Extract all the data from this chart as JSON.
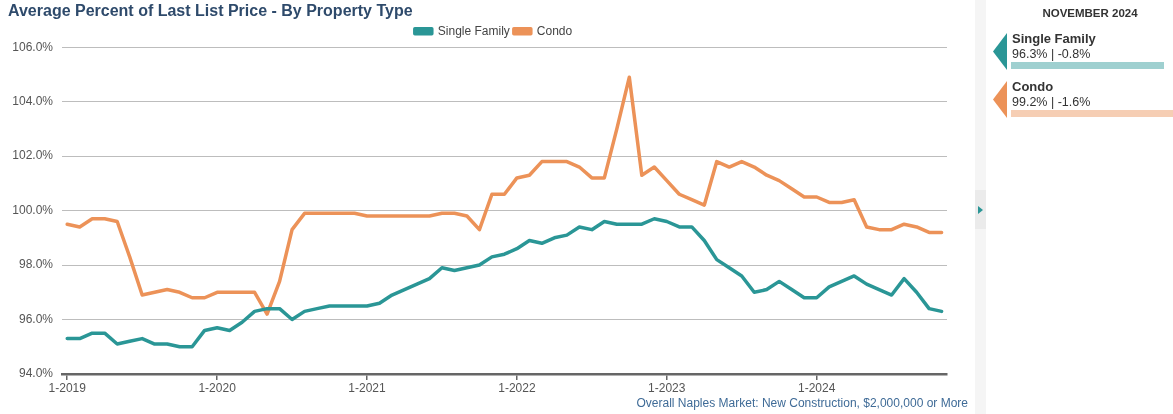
{
  "chart_data": [
    {
      "type": "line",
      "title": "Average Percent of Last List Price - By Property Type",
      "x": [
        "2019-01",
        "2019-02",
        "2019-03",
        "2019-04",
        "2019-05",
        "2019-06",
        "2019-07",
        "2019-08",
        "2019-09",
        "2019-10",
        "2019-11",
        "2019-12",
        "2020-01",
        "2020-02",
        "2020-03",
        "2020-04",
        "2020-05",
        "2020-06",
        "2020-07",
        "2020-08",
        "2020-09",
        "2020-10",
        "2020-11",
        "2020-12",
        "2021-01",
        "2021-02",
        "2021-03",
        "2021-04",
        "2021-05",
        "2021-06",
        "2021-07",
        "2021-08",
        "2021-09",
        "2021-10",
        "2021-11",
        "2021-12",
        "2022-01",
        "2022-02",
        "2022-03",
        "2022-04",
        "2022-05",
        "2022-06",
        "2022-07",
        "2022-08",
        "2022-09",
        "2022-10",
        "2022-11",
        "2022-12",
        "2023-01",
        "2023-02",
        "2023-03",
        "2023-04",
        "2023-05",
        "2023-06",
        "2023-07",
        "2023-08",
        "2023-09",
        "2023-10",
        "2023-11",
        "2023-12",
        "2024-01",
        "2024-02",
        "2024-03",
        "2024-04",
        "2024-05",
        "2024-06",
        "2024-07",
        "2024-08",
        "2024-09",
        "2024-10",
        "2024-11"
      ],
      "series": [
        {
          "name": "Single Family",
          "color": "#2a9696",
          "values": [
            95.3,
            95.3,
            95.5,
            95.5,
            95.1,
            95.2,
            95.3,
            95.1,
            95.1,
            95.0,
            95.0,
            95.6,
            95.7,
            95.6,
            95.9,
            96.3,
            96.4,
            96.4,
            96.0,
            96.3,
            96.4,
            96.5,
            96.5,
            96.5,
            96.5,
            96.6,
            96.9,
            97.1,
            97.3,
            97.5,
            97.9,
            97.8,
            97.9,
            98.0,
            98.3,
            98.4,
            98.6,
            98.9,
            98.8,
            99.0,
            99.1,
            99.4,
            99.3,
            99.6,
            99.5,
            99.5,
            99.5,
            99.7,
            99.6,
            99.4,
            99.4,
            98.9,
            98.2,
            97.9,
            97.6,
            97.0,
            97.1,
            97.4,
            97.1,
            96.8,
            96.8,
            97.2,
            97.4,
            97.6,
            97.3,
            97.1,
            96.9,
            97.5,
            97.0,
            96.4,
            96.3
          ]
        },
        {
          "name": "Condo",
          "color": "#ec9258",
          "values": [
            99.5,
            99.4,
            99.7,
            99.7,
            99.6,
            98.3,
            96.9,
            97.0,
            97.1,
            97.0,
            96.8,
            96.8,
            97.0,
            97.0,
            97.0,
            97.0,
            96.2,
            97.4,
            99.3,
            99.9,
            99.9,
            99.9,
            99.9,
            99.9,
            99.8,
            99.8,
            99.8,
            99.8,
            99.8,
            99.8,
            99.9,
            99.9,
            99.8,
            99.3,
            100.6,
            100.6,
            101.2,
            101.3,
            101.8,
            101.8,
            101.8,
            101.6,
            101.2,
            101.2,
            103.0,
            104.9,
            101.3,
            101.6,
            101.1,
            100.6,
            100.4,
            100.2,
            101.8,
            101.6,
            101.8,
            101.6,
            101.3,
            101.1,
            100.8,
            100.5,
            100.5,
            100.3,
            100.3,
            100.4,
            99.4,
            99.3,
            99.3,
            99.5,
            99.4,
            99.2,
            99.2
          ]
        }
      ],
      "xlim": [
        "2018-12-19",
        "2024-11-14"
      ],
      "xticks": [
        {
          "value": "2019-01",
          "label": "1-2019"
        },
        {
          "value": "2020-01",
          "label": "1-2020"
        },
        {
          "value": "2021-01",
          "label": "1-2021"
        },
        {
          "value": "2022-01",
          "label": "1-2022"
        },
        {
          "value": "2023-01",
          "label": "1-2023"
        },
        {
          "value": "2024-01",
          "label": "1-2024"
        }
      ],
      "ylim": [
        94,
        106
      ],
      "yticks": [
        {
          "value": 94,
          "label": "94.0%"
        },
        {
          "value": 96,
          "label": "96.0%"
        },
        {
          "value": 98,
          "label": "98.0%"
        },
        {
          "value": 100,
          "label": "100.0%"
        },
        {
          "value": 102,
          "label": "102.0%"
        },
        {
          "value": 104,
          "label": "104.0%"
        },
        {
          "value": 106,
          "label": "106.0%"
        }
      ],
      "grid": "y",
      "legend": "top",
      "annotations": [
        "Overall Naples Market: New Construction, $2,000,000 or More"
      ]
    },
    {
      "type": "other",
      "title": "NOVEMBER 2024",
      "annotations": [
        "Single Family",
        "96.3% | -0.8%",
        "Condo",
        "99.2% | -1.6%"
      ],
      "colors": [
        "#2a9696",
        "#ec9258"
      ]
    }
  ]
}
